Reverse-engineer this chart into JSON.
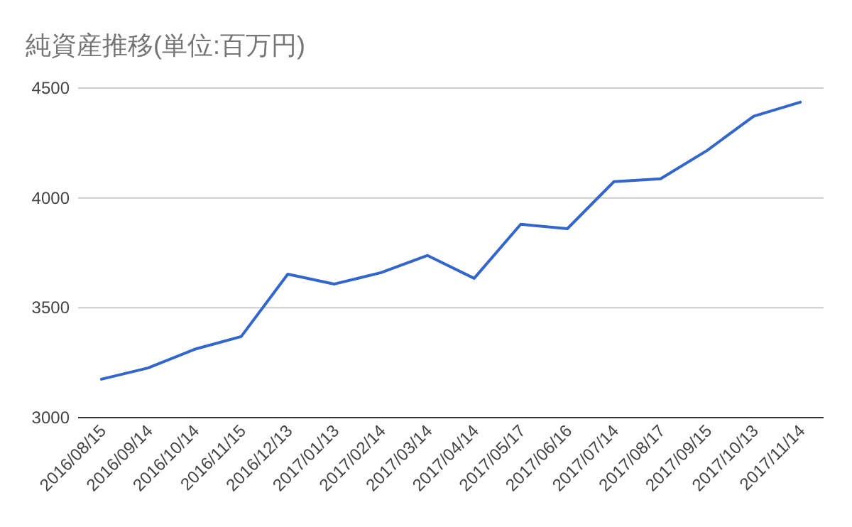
{
  "chart_data": {
    "type": "line",
    "title": "純資産推移(単位:百万円)",
    "categories": [
      "2016/08/15",
      "2016/09/14",
      "2016/10/14",
      "2016/11/15",
      "2016/12/13",
      "2017/01/13",
      "2017/02/14",
      "2017/03/14",
      "2017/04/14",
      "2017/05/17",
      "2017/06/16",
      "2017/07/14",
      "2017/08/17",
      "2017/09/15",
      "2017/10/13",
      "2017/11/14"
    ],
    "values": [
      3175,
      3226,
      3311,
      3369,
      3653,
      3608,
      3660,
      3738,
      3634,
      3880,
      3860,
      4074,
      4087,
      4216,
      4372,
      4436
    ],
    "color": "#3366cc",
    "ylim": [
      3000,
      4500
    ],
    "yticks": [
      3000,
      3500,
      4000,
      4500
    ],
    "grid": "y"
  }
}
